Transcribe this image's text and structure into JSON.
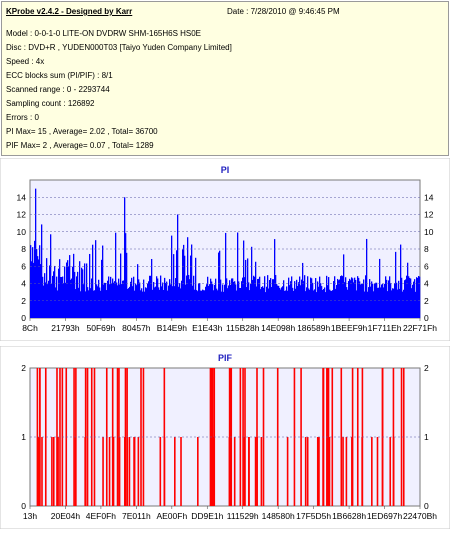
{
  "header": {
    "app_title": "KProbe v2.4.2 - Designed by Karr",
    "date": "Date : 7/28/2010 @ 9:46:45 PM"
  },
  "info_lines": [
    "Model : 0-0-1-0 LITE-ON DVDRW SHM-165H6S HS0E",
    "Disc : DVD+R , YUDEN000T03 [Taiyo Yuden Company Limited]",
    "Speed : 4x",
    "ECC blocks sum (PI/PIF) : 8/1",
    "Scanned range : 0 - 2293744",
    "Sampling count : 126892",
    "Errors : 0",
    "PI Max= 15 , Average= 2.02 , Total= 36700",
    "PIF Max= 2 , Average= 0.07 , Total= 1289"
  ],
  "colors": {
    "pi": "#0000ff",
    "pif": "#ff0000",
    "title": "#1f1fbf",
    "grid": "#5a5aa5",
    "plot_bg": "#f0f0ff"
  },
  "chart_data": [
    {
      "type": "bar",
      "title": "PI",
      "ylim": [
        0,
        15
      ],
      "yticks": [
        0,
        2,
        4,
        6,
        8,
        10,
        12,
        14
      ],
      "xticks": [
        "8Ch",
        "21793h",
        "50F69h",
        "80457h",
        "B14E9h",
        "E1E43h",
        "115B28h",
        "14E098h",
        "186589h",
        "1BEEF9h",
        "1F711Eh",
        "22F71Fh"
      ],
      "max": 15,
      "average": 2.02,
      "total": 36700,
      "series": [
        {
          "name": "PI",
          "color": "#0000ff"
        }
      ]
    },
    {
      "type": "bar",
      "title": "PIF",
      "ylim": [
        0,
        2
      ],
      "yticks": [
        0,
        1,
        2
      ],
      "xticks": [
        "13h",
        "20E04h",
        "4EF0Fh",
        "7E011h",
        "AE00Fh",
        "DD9E1h",
        "111529h",
        "148580h",
        "17F5D5h",
        "1B6628h",
        "1ED697h",
        "22470Bh"
      ],
      "max": 2,
      "average": 0.07,
      "total": 1289,
      "series": [
        {
          "name": "PIF",
          "color": "#ff0000"
        }
      ]
    }
  ]
}
